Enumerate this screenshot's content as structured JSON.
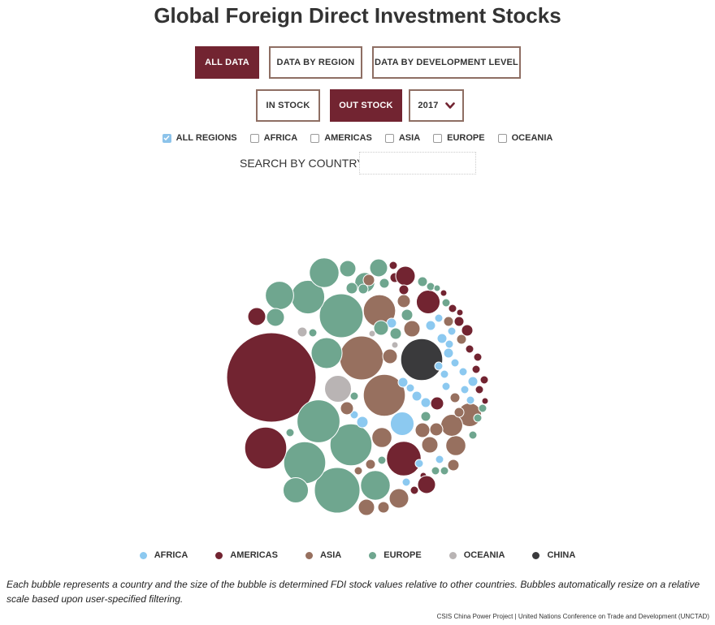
{
  "title": "Global Foreign Direct Investment Stocks",
  "view_buttons": [
    {
      "label": "ALL DATA",
      "active": true
    },
    {
      "label": "DATA BY REGION",
      "active": false
    },
    {
      "label": "DATA BY DEVELOPMENT LEVEL",
      "active": false
    }
  ],
  "stock_buttons": [
    {
      "label": "IN STOCK",
      "active": false
    },
    {
      "label": "OUT STOCK",
      "active": true
    }
  ],
  "year_select": {
    "value": "2017"
  },
  "region_filters": [
    {
      "label": "ALL REGIONS",
      "checked": true
    },
    {
      "label": "AFRICA",
      "checked": false
    },
    {
      "label": "AMERICAS",
      "checked": false
    },
    {
      "label": "ASIA",
      "checked": false
    },
    {
      "label": "EUROPE",
      "checked": false
    },
    {
      "label": "OCEANIA",
      "checked": false
    }
  ],
  "search": {
    "label": "SEARCH BY COUNTRY",
    "placeholder": "",
    "value": ""
  },
  "colors": {
    "africa": "#8cc9f0",
    "americas": "#722431",
    "asia": "#97705f",
    "europe": "#6fa68f",
    "oceania": "#b9b4b4",
    "china": "#3a3a3c",
    "button_active": "#722431",
    "button_border": "#8e6e63"
  },
  "legend": [
    {
      "label": "AFRICA",
      "color": "#8cc9f0"
    },
    {
      "label": "AMERICAS",
      "color": "#722431"
    },
    {
      "label": "ASIA",
      "color": "#97705f"
    },
    {
      "label": "EUROPE",
      "color": "#6fa68f"
    },
    {
      "label": "OCEANIA",
      "color": "#b9b4b4"
    },
    {
      "label": "CHINA",
      "color": "#3a3a3c"
    }
  ],
  "note": "Each bubble represents a country and the size of the bubble is determined FDI stock values relative to other countries. Bubbles automatically resize on a relative scale based upon user-specified filtering.",
  "source": "CSIS China Power Project | United Nations Conference on Trade and Development (UNCTAD)",
  "chart_data": {
    "type": "bubble",
    "year": "2017",
    "measure": "OUT STOCK",
    "series_by_region": [
      "AFRICA",
      "AMERICAS",
      "ASIA",
      "EUROPE",
      "OCEANIA",
      "CHINA"
    ],
    "values_note_relative_size": true,
    "bubbles": [
      {
        "region": "americas",
        "value": 100
      },
      {
        "region": "europe",
        "value": 26
      },
      {
        "region": "asia",
        "value": 24
      },
      {
        "region": "europe",
        "value": 24
      },
      {
        "region": "europe",
        "value": 22
      },
      {
        "region": "europe",
        "value": 22
      },
      {
        "region": "europe",
        "value": 23
      },
      {
        "region": "china",
        "value": 22
      },
      {
        "region": "asia",
        "value": 22
      },
      {
        "region": "americas",
        "value": 22
      },
      {
        "region": "europe",
        "value": 14
      },
      {
        "region": "europe",
        "value": 12
      },
      {
        "region": "europe",
        "value": 11
      },
      {
        "region": "asia",
        "value": 13
      },
      {
        "region": "americas",
        "value": 15
      },
      {
        "region": "europe",
        "value": 10
      },
      {
        "region": "europe",
        "value": 8
      },
      {
        "region": "europe",
        "value": 11
      },
      {
        "region": "oceania",
        "value": 9
      },
      {
        "region": "africa",
        "value": 7
      },
      {
        "region": "americas",
        "value": 7
      },
      {
        "region": "asia",
        "value": 5
      },
      {
        "region": "asia",
        "value": 7
      },
      {
        "region": "asia",
        "value": 5
      },
      {
        "region": "europe",
        "value": 5
      },
      {
        "region": "europe",
        "value": 4
      },
      {
        "region": "asia",
        "value": 6
      }
    ]
  }
}
